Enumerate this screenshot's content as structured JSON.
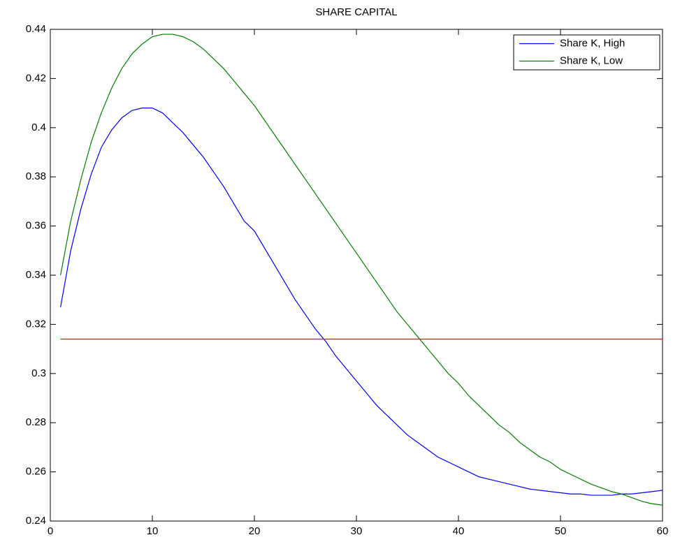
{
  "chart_data": {
    "type": "line",
    "title": "SHARE CAPITAL",
    "x": [
      1,
      2,
      3,
      4,
      5,
      6,
      7,
      8,
      9,
      10,
      11,
      12,
      13,
      14,
      15,
      16,
      17,
      18,
      19,
      20,
      21,
      22,
      23,
      24,
      25,
      26,
      27,
      28,
      29,
      30,
      31,
      32,
      33,
      34,
      35,
      36,
      37,
      38,
      39,
      40,
      41,
      42,
      43,
      44,
      45,
      46,
      47,
      48,
      49,
      50,
      51,
      52,
      53,
      54,
      55,
      56,
      57,
      58,
      59,
      60
    ],
    "series": [
      {
        "name": "Share K, High",
        "color": "#0000ff",
        "values": [
          0.327,
          0.35,
          0.367,
          0.381,
          0.392,
          0.399,
          0.404,
          0.407,
          0.408,
          0.408,
          0.406,
          0.402,
          0.398,
          0.393,
          0.388,
          0.382,
          0.376,
          0.369,
          0.362,
          0.358,
          0.351,
          0.344,
          0.337,
          0.33,
          0.324,
          0.318,
          0.313,
          0.307,
          0.302,
          0.297,
          0.292,
          0.287,
          0.283,
          0.279,
          0.275,
          0.272,
          0.269,
          0.266,
          0.264,
          0.262,
          0.26,
          0.258,
          0.257,
          0.256,
          0.255,
          0.254,
          0.253,
          0.2525,
          0.252,
          0.2515,
          0.251,
          0.251,
          0.2505,
          0.2505,
          0.2505,
          0.251,
          0.251,
          0.2515,
          0.252,
          0.2525
        ]
      },
      {
        "name": "Share K, Low",
        "color": "#008000",
        "values": [
          0.34,
          0.362,
          0.379,
          0.394,
          0.406,
          0.416,
          0.424,
          0.43,
          0.434,
          0.437,
          0.438,
          0.438,
          0.437,
          0.435,
          0.432,
          0.428,
          0.424,
          0.419,
          0.414,
          0.409,
          0.403,
          0.397,
          0.391,
          0.385,
          0.379,
          0.373,
          0.367,
          0.361,
          0.355,
          0.349,
          0.343,
          0.337,
          0.331,
          0.325,
          0.32,
          0.315,
          0.31,
          0.305,
          0.3,
          0.296,
          0.291,
          0.287,
          0.283,
          0.279,
          0.276,
          0.272,
          0.269,
          0.266,
          0.264,
          0.261,
          0.259,
          0.257,
          0.255,
          0.2535,
          0.252,
          0.251,
          0.2495,
          0.248,
          0.247,
          0.2465
        ]
      },
      {
        "color": "#ff0000",
        "values": [
          0.314,
          0.314,
          0.314,
          0.314,
          0.314,
          0.314,
          0.314,
          0.314,
          0.314,
          0.314,
          0.314,
          0.314,
          0.314,
          0.314,
          0.314,
          0.314,
          0.314,
          0.314,
          0.314,
          0.314,
          0.314,
          0.314,
          0.314,
          0.314,
          0.314,
          0.314,
          0.314,
          0.314,
          0.314,
          0.314,
          0.314,
          0.314,
          0.314,
          0.314,
          0.314,
          0.314,
          0.314,
          0.314,
          0.314,
          0.314,
          0.314,
          0.314,
          0.314,
          0.314,
          0.314,
          0.314,
          0.314,
          0.314,
          0.314,
          0.314,
          0.314,
          0.314,
          0.314,
          0.314,
          0.314,
          0.314,
          0.314,
          0.314,
          0.314,
          0.314
        ]
      }
    ],
    "xlim": [
      0,
      60
    ],
    "xticks": [
      0,
      10,
      20,
      30,
      40,
      50,
      60
    ],
    "ylim": [
      0.24,
      0.44
    ],
    "yticks": [
      0.24,
      0.26,
      0.28,
      0.3,
      0.32,
      0.34,
      0.36,
      0.38,
      0.4,
      0.42,
      0.44
    ],
    "legend": "upper right",
    "grid": false
  }
}
